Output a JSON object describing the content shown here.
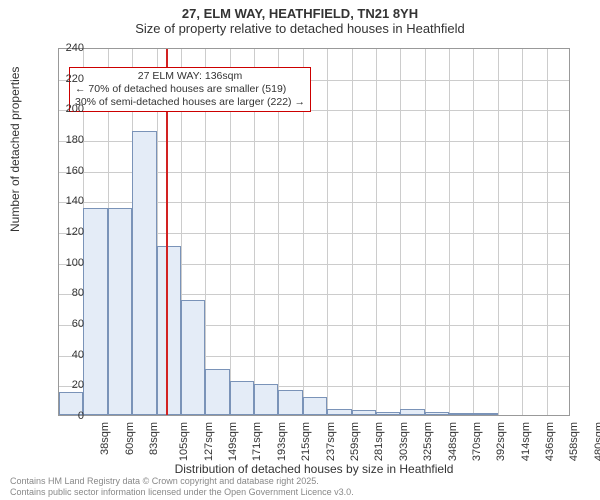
{
  "title": "27, ELM WAY, HEATHFIELD, TN21 8YH",
  "subtitle": "Size of property relative to detached houses in Heathfield",
  "chart": {
    "type": "histogram",
    "background_color": "#ffffff",
    "grid_color": "#cccccc",
    "border_color": "#999999",
    "bar_fill": "#e4ecf7",
    "bar_stroke": "#7a93b8",
    "marker_color": "#d22222",
    "ylabel": "Number of detached properties",
    "xlabel": "Distribution of detached houses by size in Heathfield",
    "label_fontsize": 12,
    "tick_fontsize": 11,
    "title_fontsize": 13,
    "ylim": [
      0,
      240
    ],
    "ytick_step": 20,
    "x_categories": [
      "38sqm",
      "60sqm",
      "83sqm",
      "105sqm",
      "127sqm",
      "149sqm",
      "171sqm",
      "193sqm",
      "215sqm",
      "237sqm",
      "259sqm",
      "281sqm",
      "303sqm",
      "325sqm",
      "348sqm",
      "370sqm",
      "392sqm",
      "414sqm",
      "436sqm",
      "458sqm",
      "480sqm"
    ],
    "values": [
      15,
      135,
      135,
      185,
      110,
      75,
      30,
      22,
      20,
      16,
      12,
      4,
      3,
      2,
      4,
      2,
      1,
      1,
      0,
      0,
      0
    ],
    "marker_category_index": 4,
    "bar_width_ratio": 1.0
  },
  "annotation": {
    "header": "27 ELM WAY: 136sqm",
    "line1": "← 70% of detached houses are smaller (519)",
    "line2": "30% of semi-detached houses are larger (222) →",
    "border_color": "#cc0000",
    "fontsize": 10.5
  },
  "credits": {
    "line1": "Contains HM Land Registry data © Crown copyright and database right 2025.",
    "line2": "Contains public sector information licensed under the Open Government Licence v3.0."
  }
}
